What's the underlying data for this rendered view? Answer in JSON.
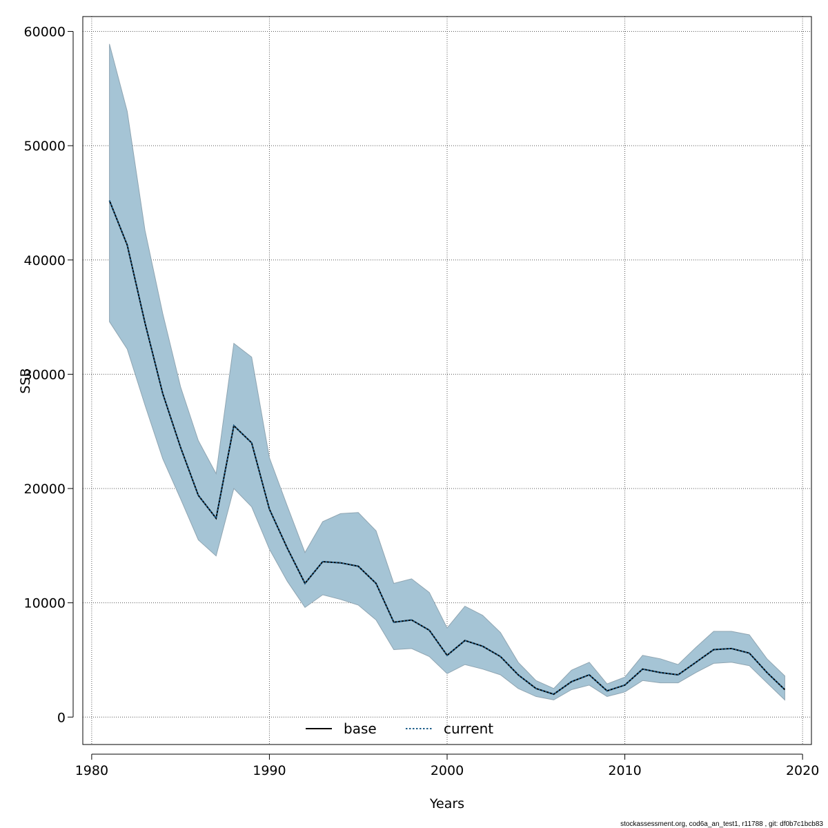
{
  "chart_data": {
    "type": "line",
    "title": "",
    "xlabel": "Years",
    "ylabel": "SSB",
    "xlim": [
      1979.5,
      2020.5
    ],
    "ylim": [
      -2400,
      61300
    ],
    "x_ticks": [
      1980,
      1990,
      2000,
      2010,
      2020
    ],
    "x_tick_labels": [
      "1980",
      "1990",
      "2000",
      "2010",
      "2020"
    ],
    "y_ticks": [
      0,
      10000,
      20000,
      30000,
      40000,
      50000,
      60000
    ],
    "y_tick_labels": [
      "0",
      "10000",
      "20000",
      "30000",
      "40000",
      "50000",
      "60000"
    ],
    "grid": true,
    "legend_position": "bottom",
    "x": [
      1981,
      1982,
      1983,
      1984,
      1985,
      1986,
      1987,
      1988,
      1989,
      1990,
      1991,
      1992,
      1993,
      1994,
      1995,
      1996,
      1997,
      1998,
      1999,
      2000,
      2001,
      2002,
      2003,
      2004,
      2005,
      2006,
      2007,
      2008,
      2009,
      2010,
      2011,
      2012,
      2013,
      2014,
      2015,
      2016,
      2017,
      2018,
      2019
    ],
    "series": [
      {
        "name": "base",
        "style": "solid",
        "color": "#000000",
        "values": [
          45200,
          41300,
          34500,
          28300,
          23600,
          19400,
          17400,
          25500,
          24000,
          18200,
          14800,
          11700,
          13600,
          13500,
          13200,
          11700,
          8300,
          8500,
          7600,
          5400,
          6700,
          6200,
          5300,
          3700,
          2500,
          2000,
          3100,
          3700,
          2300,
          2800,
          4200,
          3900,
          3700,
          4800,
          5900,
          6000,
          5600,
          3900,
          2400
        ]
      },
      {
        "name": "current",
        "style": "dotted",
        "color": "#1f5f8b",
        "values": [
          45200,
          41300,
          34500,
          28300,
          23600,
          19400,
          17400,
          25500,
          24000,
          18200,
          14800,
          11700,
          13600,
          13500,
          13200,
          11700,
          8300,
          8500,
          7600,
          5400,
          6700,
          6200,
          5300,
          3700,
          2500,
          2000,
          3100,
          3700,
          2300,
          2800,
          4200,
          3900,
          3700,
          4800,
          5900,
          6000,
          5600,
          3900,
          2400
        ]
      }
    ],
    "confidence_band": {
      "color": "#a5c4d5",
      "upper": [
        58900,
        53000,
        42600,
        35300,
        28900,
        24200,
        21300,
        32700,
        31500,
        22700,
        18500,
        14400,
        17100,
        17800,
        17900,
        16300,
        11700,
        12100,
        10900,
        7800,
        9700,
        8900,
        7400,
        4800,
        3200,
        2500,
        4100,
        4800,
        2900,
        3500,
        5400,
        5100,
        4600,
        6100,
        7500,
        7500,
        7200,
        5100,
        3600
      ],
      "lower": [
        34600,
        32200,
        27300,
        22600,
        19100,
        15500,
        14100,
        20000,
        18400,
        14700,
        11900,
        9600,
        10700,
        10300,
        9800,
        8500,
        5900,
        6000,
        5300,
        3800,
        4600,
        4200,
        3700,
        2500,
        1800,
        1500,
        2400,
        2800,
        1800,
        2200,
        3200,
        3000,
        3000,
        3900,
        4700,
        4800,
        4500,
        3000,
        1500
      ]
    },
    "footer": "stockassessment.org, cod6a_an_test1, r11788 , git: df0b7c1bcb83"
  }
}
